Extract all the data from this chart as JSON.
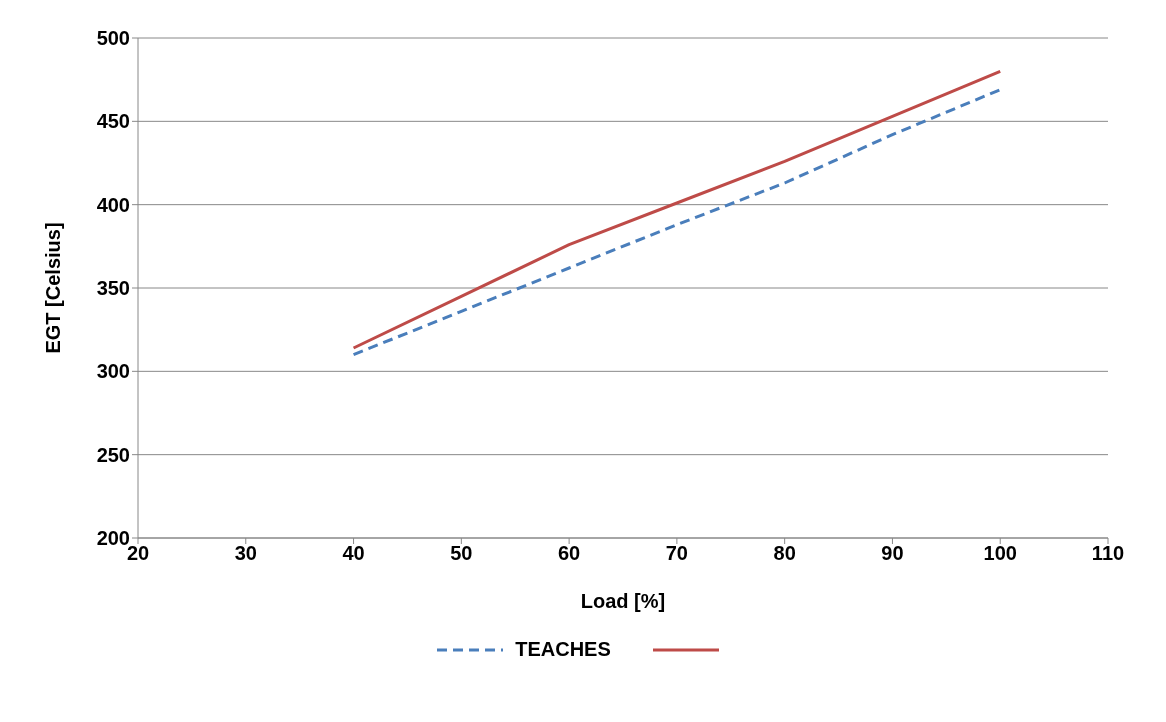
{
  "chart_data": {
    "type": "line",
    "xlabel": "Load [%]",
    "ylabel": "EGT [Celsius]",
    "x": [
      40,
      50,
      60,
      70,
      80,
      90,
      100
    ],
    "series": [
      {
        "name": "TEACHES",
        "color": "#4a7ebb",
        "line_style": "dashed",
        "values": [
          310,
          336,
          362,
          388,
          413,
          442,
          469
        ]
      },
      {
        "color": "#be4b48",
        "line_style": "solid",
        "values": [
          314,
          345,
          376,
          401,
          426,
          453,
          480
        ]
      }
    ],
    "xlim": [
      20,
      110
    ],
    "xticks": [
      20,
      30,
      40,
      50,
      60,
      70,
      80,
      90,
      100,
      110
    ],
    "ylim": [
      200,
      500
    ],
    "yticks": [
      200,
      250,
      300,
      350,
      400,
      450,
      500
    ],
    "grid": "y",
    "legend": "bottom"
  }
}
